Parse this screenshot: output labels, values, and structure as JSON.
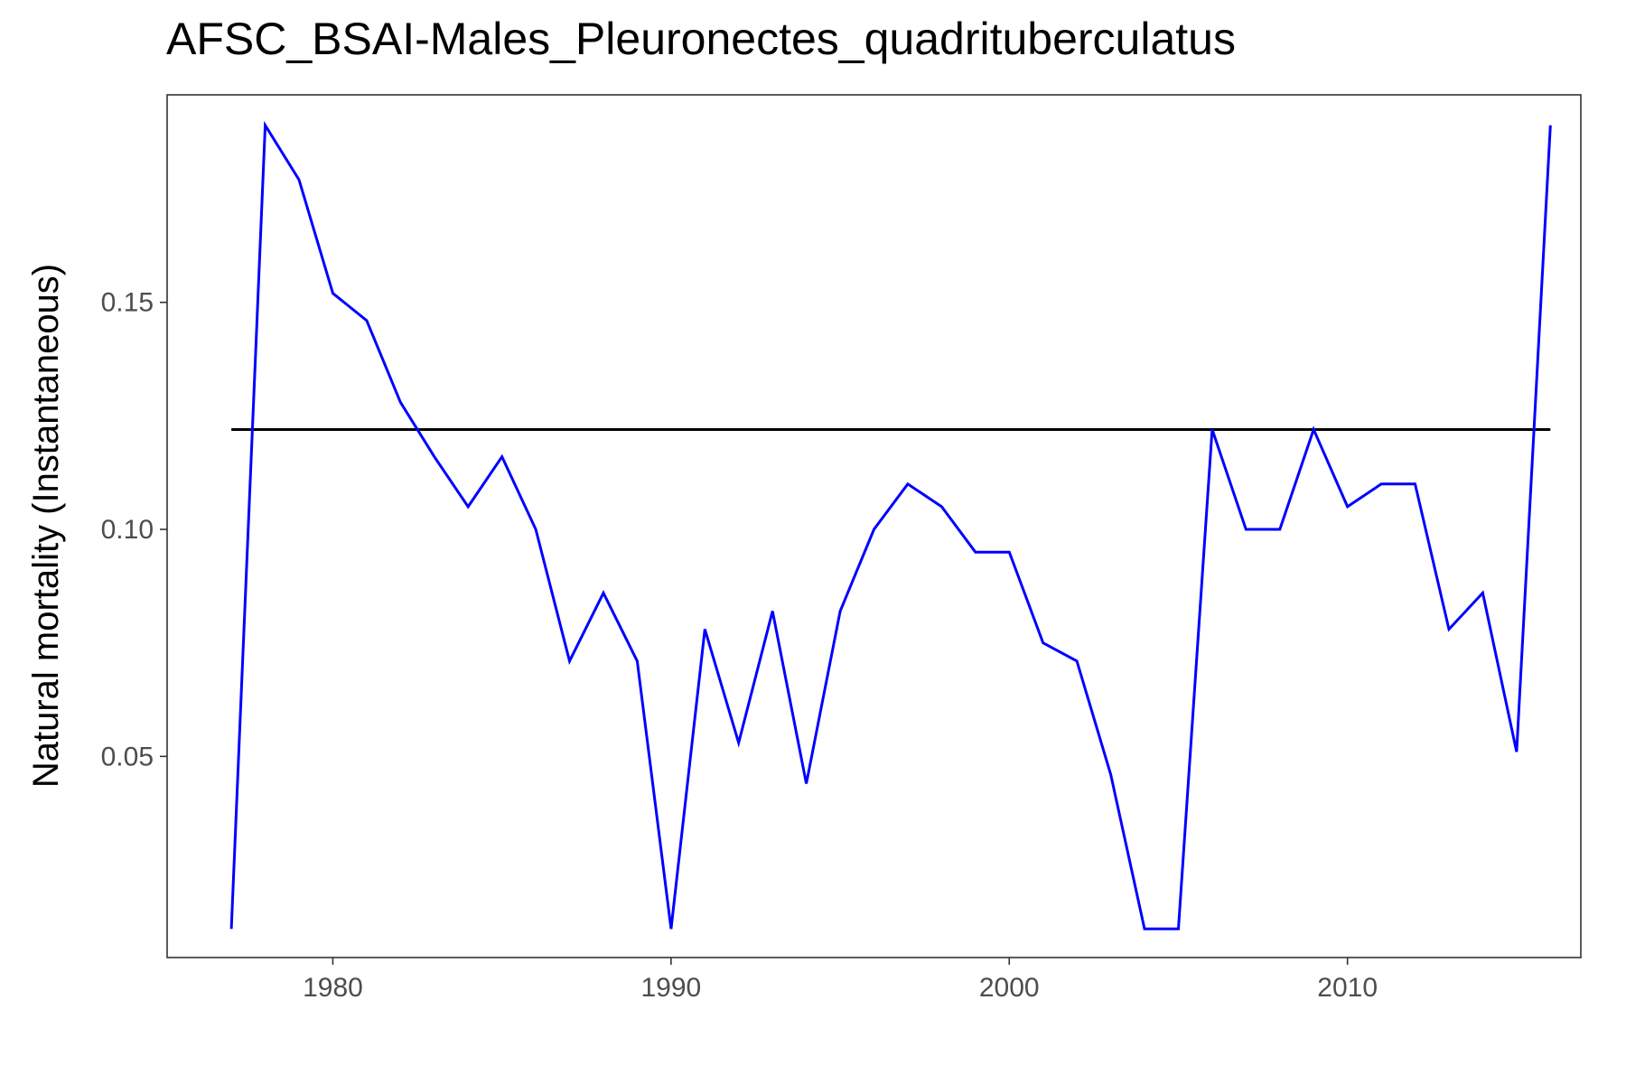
{
  "chart_data": {
    "type": "line",
    "title": "AFSC_BSAI-Males_Pleuronectes_quadrituberculatus",
    "xlabel": "",
    "ylabel": "Natural mortality (Instantaneous)",
    "xlim": [
      1975.1,
      2016.9
    ],
    "ylim": [
      0.0057,
      0.1957
    ],
    "x_ticks": [
      1980,
      1990,
      2000,
      2010
    ],
    "x_tick_labels": [
      "1980",
      "1990",
      "2000",
      "2010"
    ],
    "y_ticks": [
      0.05,
      0.1,
      0.15
    ],
    "y_tick_labels": [
      "0.05",
      "0.10",
      "0.15"
    ],
    "grid": false,
    "colors": {
      "series": "#0000ff",
      "reference": "#000000",
      "panel_border": "#333333"
    },
    "series": [
      {
        "x": [
          1977,
          1978,
          1979,
          1980,
          1981,
          1982,
          1983,
          1984,
          1985,
          1986,
          1987,
          1988,
          1989,
          1990,
          1991,
          1992,
          1993,
          1994,
          1995,
          1996,
          1997,
          1998,
          1999,
          2000,
          2001,
          2002,
          2003,
          2004,
          2005,
          2006,
          2007,
          2008,
          2009,
          2010,
          2011,
          2012,
          2013,
          2014,
          2015,
          2016
        ],
        "values": [
          0.012,
          0.189,
          0.177,
          0.152,
          0.146,
          0.128,
          0.116,
          0.105,
          0.116,
          0.1,
          0.071,
          0.086,
          0.071,
          0.012,
          0.078,
          0.053,
          0.082,
          0.044,
          0.082,
          0.1,
          0.11,
          0.105,
          0.095,
          0.095,
          0.075,
          0.071,
          0.046,
          0.012,
          0.012,
          0.122,
          0.1,
          0.1,
          0.122,
          0.105,
          0.11,
          0.11,
          0.078,
          0.086,
          0.051,
          0.189
        ]
      }
    ],
    "reference_line": {
      "y": 0.122,
      "x_range": [
        1977,
        2016
      ]
    }
  }
}
